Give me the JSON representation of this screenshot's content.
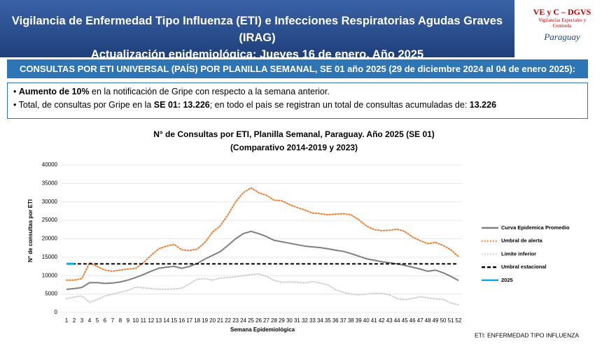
{
  "header": {
    "title": "Vigilancia de Enfermedad Tipo Influenza (ETI) e Infecciones Respiratorias Agudas Graves (IRAG)",
    "subtitle": "Actualización epidemiológica: Jueves 16 de enero, Año 2025",
    "logo": {
      "title": "VE y C – DGVS",
      "line1": "Vigilancias Especiales y",
      "line2": "Centinela",
      "country": "Paraguay"
    }
  },
  "section": {
    "title": "CONSULTAS POR ETI UNIVERSAL (PAÍS) POR PLANILLA SEMANAL, SE 01 año 2025 (29 de diciembre 2024 al 04 de enero 2025):",
    "bullets": [
      [
        {
          "text": "Aumento de 10%",
          "bold": true
        },
        {
          "text": " en la notificación de Gripe con respecto a la semana anterior.",
          "bold": false
        }
      ],
      [
        {
          "text": "Total, de consultas por Gripe en la ",
          "bold": false
        },
        {
          "text": "SE 01: 13.226",
          "bold": true
        },
        {
          "text": "; en todo el país se registran un total de consultas acumuladas de: ",
          "bold": false
        },
        {
          "text": "13.226",
          "bold": true
        }
      ]
    ]
  },
  "chart_data": {
    "type": "line",
    "title": "N° de Consultas por ETI, Planilla Semanal, Paraguay. Año 2025  (SE 01)",
    "subtitle": "(Comparativo 2014-2019 y 2023)",
    "x_label": "Semana Epidemiológica",
    "y_label": "N° de consultas por ETI",
    "categories": [
      "1",
      "2",
      "3",
      "4",
      "5",
      "6",
      "7",
      "8",
      "9",
      "10",
      "11",
      "12",
      "13",
      "14",
      "15",
      "16",
      "17",
      "18",
      "19",
      "20",
      "21",
      "22",
      "23",
      "24",
      "25",
      "26",
      "27",
      "28",
      "29",
      "30",
      "31",
      "32",
      "33",
      "34",
      "35",
      "36",
      "37",
      "38",
      "39",
      "40",
      "41",
      "42",
      "43",
      "44",
      "45",
      "46",
      "47",
      "48",
      "49",
      "50",
      "51",
      "52"
    ],
    "ylim": [
      0,
      40000
    ],
    "yticks": [
      0,
      5000,
      10000,
      15000,
      20000,
      25000,
      30000,
      35000,
      40000
    ],
    "grid": true,
    "legend": "right",
    "series": [
      {
        "name": "Curva Epidemica Promedio",
        "color": "#7f7f7f",
        "style": "solid",
        "values": [
          6300,
          6500,
          6800,
          8100,
          8100,
          7900,
          8000,
          8300,
          8800,
          9500,
          10300,
          11200,
          12000,
          12300,
          12500,
          12000,
          12500,
          13300,
          14500,
          15500,
          16500,
          18200,
          20000,
          21400,
          22000,
          21400,
          20600,
          19600,
          19200,
          18800,
          18400,
          18000,
          17800,
          17600,
          17300,
          16900,
          16600,
          16000,
          15300,
          14600,
          14200,
          13800,
          13500,
          13200,
          12800,
          12300,
          11800,
          11200,
          11500,
          10800,
          9800,
          8700
        ]
      },
      {
        "name": "Umbral de alerta",
        "color": "#ed7d31",
        "style": "dotted",
        "values": [
          8800,
          8800,
          9200,
          13500,
          12500,
          11500,
          11200,
          11500,
          11800,
          12000,
          13500,
          15500,
          17300,
          18000,
          18500,
          17000,
          16800,
          17200,
          19000,
          21800,
          23500,
          26500,
          30000,
          32500,
          33800,
          32500,
          31800,
          30500,
          30300,
          29300,
          28500,
          27800,
          27000,
          26800,
          26500,
          26700,
          26800,
          26500,
          25200,
          23500,
          22500,
          22200,
          22300,
          22600,
          22000,
          20500,
          19500,
          18700,
          19000,
          18200,
          17000,
          15200
        ]
      },
      {
        "name": "Limite inferior",
        "color": "#d0d0d0",
        "style": "dotted",
        "values": [
          3800,
          4200,
          4500,
          2800,
          3500,
          4500,
          5000,
          5500,
          6000,
          6900,
          6700,
          6500,
          6300,
          6300,
          6400,
          6600,
          7800,
          9000,
          9200,
          8800,
          9300,
          9500,
          9700,
          10000,
          10300,
          10500,
          9800,
          8700,
          8200,
          8300,
          8200,
          8000,
          8400,
          8000,
          7500,
          6200,
          5500,
          5000,
          4800,
          5000,
          5200,
          5200,
          4800,
          3800,
          3500,
          3800,
          4300,
          4000,
          3700,
          3600,
          2600,
          2100
        ]
      },
      {
        "name": "Umbral estacional",
        "color": "#000000",
        "style": "dashed",
        "values": [
          13200,
          13200,
          13200,
          13200,
          13200,
          13200,
          13200,
          13200,
          13200,
          13200,
          13200,
          13200,
          13200,
          13200,
          13200,
          13200,
          13200,
          13200,
          13200,
          13200,
          13200,
          13200,
          13200,
          13200,
          13200,
          13200,
          13200,
          13200,
          13200,
          13200,
          13200,
          13200,
          13200,
          13200,
          13200,
          13200,
          13200,
          13200,
          13200,
          13200,
          13200,
          13200,
          13200,
          13200,
          13200,
          13200,
          13200,
          13200,
          13200,
          13200,
          13200,
          13200
        ]
      },
      {
        "name": "2025",
        "color": "#00b0f0",
        "style": "solid",
        "values": [
          13226,
          null,
          null,
          null,
          null,
          null,
          null,
          null,
          null,
          null,
          null,
          null,
          null,
          null,
          null,
          null,
          null,
          null,
          null,
          null,
          null,
          null,
          null,
          null,
          null,
          null,
          null,
          null,
          null,
          null,
          null,
          null,
          null,
          null,
          null,
          null,
          null,
          null,
          null,
          null,
          null,
          null,
          null,
          null,
          null,
          null,
          null,
          null,
          null,
          null,
          null,
          null
        ]
      }
    ],
    "footnote": "ETI: ENFERMEDAD TIPO INFLUENZA"
  }
}
